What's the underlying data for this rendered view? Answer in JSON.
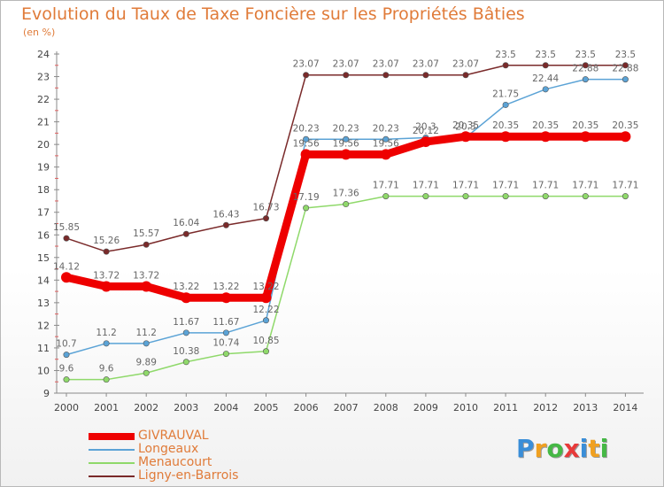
{
  "title": "Evolution du Taux de Taxe Foncière sur les Propriétés Bâties",
  "subtitle": "(en %)",
  "brand": {
    "letters": [
      "P",
      "r",
      "o",
      "x",
      "i",
      "t",
      "i"
    ],
    "colors": [
      "#3a8ed8",
      "#f0a020",
      "#45b845",
      "#e83a3a",
      "#3a8ed8",
      "#f0a020",
      "#45b845"
    ]
  },
  "chart_data": {
    "type": "line",
    "title": "Evolution du Taux de Taxe Foncière sur les Propriétés Bâties",
    "ylabel": "(en %)",
    "xlabel": "",
    "x": [
      "2000",
      "2001",
      "2002",
      "2003",
      "2004",
      "2005",
      "2006",
      "2007",
      "2008",
      "2009",
      "2010",
      "2011",
      "2012",
      "2013",
      "2014"
    ],
    "ylim": [
      9,
      24
    ],
    "yticks": [
      "9",
      "10",
      "11",
      "12",
      "13",
      "14",
      "15",
      "16",
      "17",
      "18",
      "19",
      "20",
      "21",
      "22",
      "23",
      "24"
    ],
    "grid": false,
    "legend_position": "bottom-left",
    "series": [
      {
        "name": "GIVRAUVAL",
        "color": "#ee0000",
        "values": [
          14.12,
          13.72,
          13.72,
          13.22,
          13.22,
          13.22,
          19.56,
          19.56,
          19.56,
          20.12,
          20.35,
          20.35,
          20.35,
          20.35,
          20.35
        ],
        "labels": [
          "14.12",
          "13.72",
          "13.72",
          "13.22",
          "13.22",
          "13.22",
          "19.56",
          "19.56",
          "19.56",
          "20.12",
          "20.35",
          "20.35",
          "20.35",
          "20.35",
          "20.35"
        ]
      },
      {
        "name": "Longeaux",
        "color": "#5ba3d6",
        "values": [
          10.7,
          11.2,
          11.2,
          11.67,
          11.67,
          12.22,
          20.23,
          20.23,
          20.23,
          20.3,
          20.3,
          21.75,
          22.44,
          22.88,
          22.88
        ],
        "labels": [
          "10.7",
          "11.2",
          "11.2",
          "11.67",
          "11.67",
          "12.22",
          "20.23",
          "20.23",
          "20.23",
          "20.3",
          "20.3",
          "21.75",
          "22.44",
          "22.88",
          "22.88"
        ]
      },
      {
        "name": "Menaucourt",
        "color": "#8fd96a",
        "values": [
          9.6,
          9.6,
          9.89,
          10.38,
          10.74,
          10.85,
          17.19,
          17.36,
          17.71,
          17.71,
          17.71,
          17.71,
          17.71,
          17.71,
          17.71
        ],
        "labels": [
          "9.6",
          "9.6",
          "9.89",
          "10.38",
          "10.74",
          "10.85",
          "17.19",
          "17.36",
          "17.71",
          "17.71",
          "17.71",
          "17.71",
          "17.71",
          "17.71",
          "17.71"
        ]
      },
      {
        "name": "Ligny-en-Barrois",
        "color": "#7a2a2a",
        "values": [
          15.85,
          15.26,
          15.57,
          16.04,
          16.43,
          16.73,
          23.07,
          23.07,
          23.07,
          23.07,
          23.07,
          23.5,
          23.5,
          23.5,
          23.5
        ],
        "labels": [
          "15.85",
          "15.26",
          "15.57",
          "16.04",
          "16.43",
          "16.73",
          "23.07",
          "23.07",
          "23.07",
          "23.07",
          "23.07",
          "23.5",
          "23.5",
          "23.5",
          "23.5"
        ]
      }
    ]
  }
}
